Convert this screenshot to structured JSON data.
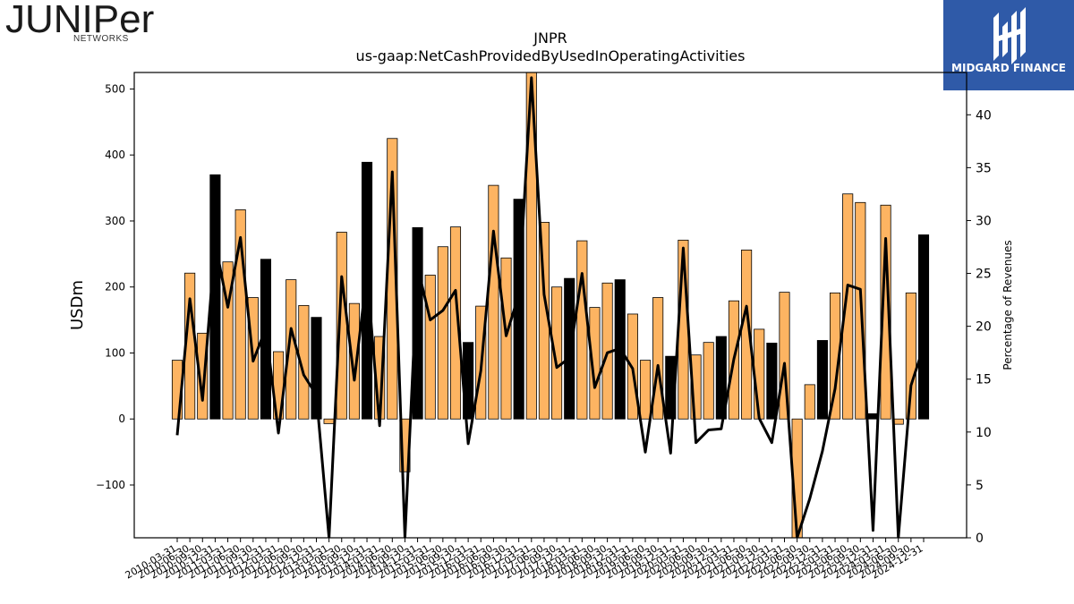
{
  "logos": {
    "left": {
      "word": "JUNIPer",
      "sub": "NETWORKS"
    },
    "right": {
      "brand": "MIDGARD FINANCE"
    }
  },
  "chart_data": {
    "type": "bar",
    "title": "JNPR",
    "subtitle": "us-gaap:NetCashProvidedByUsedInOperatingActivities",
    "ylabel": "USDm",
    "y2label": "Percentage of Revenues",
    "ylim": [
      -180,
      525
    ],
    "y2lim": [
      0,
      44
    ],
    "yticks": [
      -100,
      0,
      100,
      200,
      300,
      400,
      500
    ],
    "y2ticks": [
      0,
      5,
      10,
      15,
      20,
      25,
      30,
      35,
      40
    ],
    "colors": {
      "quarter": "#fdb462",
      "year_end": "#000000",
      "line": "#000000"
    },
    "categories": [
      "2010-03-31",
      "2010-06-30",
      "2010-09-30",
      "2010-12-31",
      "2011-03-31",
      "2011-06-30",
      "2011-09-30",
      "2011-12-31",
      "2012-03-31",
      "2012-06-30",
      "2012-09-30",
      "2012-12-31",
      "2013-03-31",
      "2013-06-30",
      "2013-09-30",
      "2013-12-31",
      "2014-03-31",
      "2014-06-30",
      "2014-09-30",
      "2014-12-31",
      "2015-03-31",
      "2015-06-30",
      "2015-09-30",
      "2015-12-31",
      "2016-03-31",
      "2016-06-30",
      "2016-09-30",
      "2016-12-31",
      "2017-03-31",
      "2017-06-30",
      "2017-09-30",
      "2017-12-31",
      "2018-03-31",
      "2018-06-30",
      "2018-09-30",
      "2018-12-31",
      "2019-03-31",
      "2019-06-30",
      "2019-09-30",
      "2019-12-31",
      "2020-03-31",
      "2020-06-30",
      "2020-09-30",
      "2020-12-31",
      "2021-03-31",
      "2021-06-30",
      "2021-09-30",
      "2021-12-31",
      "2022-03-31",
      "2022-06-30",
      "2022-09-30",
      "2022-12-31",
      "2023-03-31",
      "2023-06-30",
      "2023-09-30",
      "2023-12-31",
      "2024-03-31",
      "2024-06-30",
      "2024-09-30",
      "2024-12-31"
    ],
    "xtick_labels": [
      "2010-03-31",
      "2010-06-30",
      "2010-09-30",
      "2010-12-31",
      "2011-03-31",
      "2011-06-30",
      "2011-09-30",
      "2011-12-31",
      "2012-03-31",
      "2012-06-30",
      "2012-09-30",
      "2012-12-31",
      "2013-03-31",
      "2013-06-30",
      "2013-09-30",
      "2013-12-31",
      "2014-03-31",
      "2014-06-30",
      "2014-09-30",
      "2014-12-31",
      "2015-03-31",
      "2015-06-30",
      "2015-09-30",
      "2015-12-31",
      "2016-03-31",
      "2016-06-30",
      "2016-09-30",
      "2016-12-31",
      "2017-03-31",
      "2017-06-30",
      "2017-09-30",
      "2017-12-31",
      "2018-03-31",
      "2018-06-30",
      "2018-09-30",
      "2018-12-31",
      "2019-03-31",
      "2019-06-30",
      "2019-09-30",
      "2019-12-31",
      "2020-03-31",
      "2020-06-30",
      "2020-09-30",
      "2020-12-31",
      "2021-03-31",
      "2021-06-30",
      "2021-09-30",
      "2021-12-31",
      "2022-03-31",
      "2022-06-30",
      "2022-09-30",
      "2022-12-31",
      "2023-03-31",
      "2023-06-30",
      "2023-09-30",
      "2023-12-31",
      "2024-03-31",
      "2024-06-30",
      "2024-09-30",
      "2024-12-31"
    ],
    "values": [
      89,
      221,
      130,
      370,
      238,
      317,
      184,
      242,
      102,
      211,
      172,
      154,
      -7,
      283,
      175,
      389,
      125,
      425,
      -80,
      290,
      218,
      261,
      291,
      116,
      171,
      354,
      244,
      333,
      530,
      298,
      200,
      213,
      270,
      169,
      206,
      211,
      159,
      89,
      184,
      95,
      271,
      97,
      116,
      125,
      179,
      256,
      136,
      115,
      192,
      -180,
      52,
      119,
      191,
      341,
      328,
      8,
      324,
      -8,
      191,
      279
    ],
    "pct_revenue": [
      9.7,
      22.6,
      13.0,
      27.9,
      21.8,
      28.4,
      16.7,
      19.8,
      9.9,
      19.8,
      15.4,
      13.5,
      0,
      24.7,
      14.9,
      25.0,
      10.6,
      34.6,
      0,
      25.6,
      20.6,
      21.5,
      23.4,
      8.9,
      15.8,
      29.0,
      19.1,
      23.0,
      43.5,
      23.0,
      16.1,
      17.0,
      25.0,
      14.2,
      17.5,
      17.9,
      16.0,
      8.1,
      16.3,
      8.0,
      27.4,
      9.0,
      10.2,
      10.3,
      16.9,
      21.9,
      11.3,
      9.0,
      16.5,
      0,
      3.7,
      8.2,
      14.1,
      23.9,
      23.5,
      0.7,
      28.3,
      0,
      14.4,
      18.1
    ]
  }
}
